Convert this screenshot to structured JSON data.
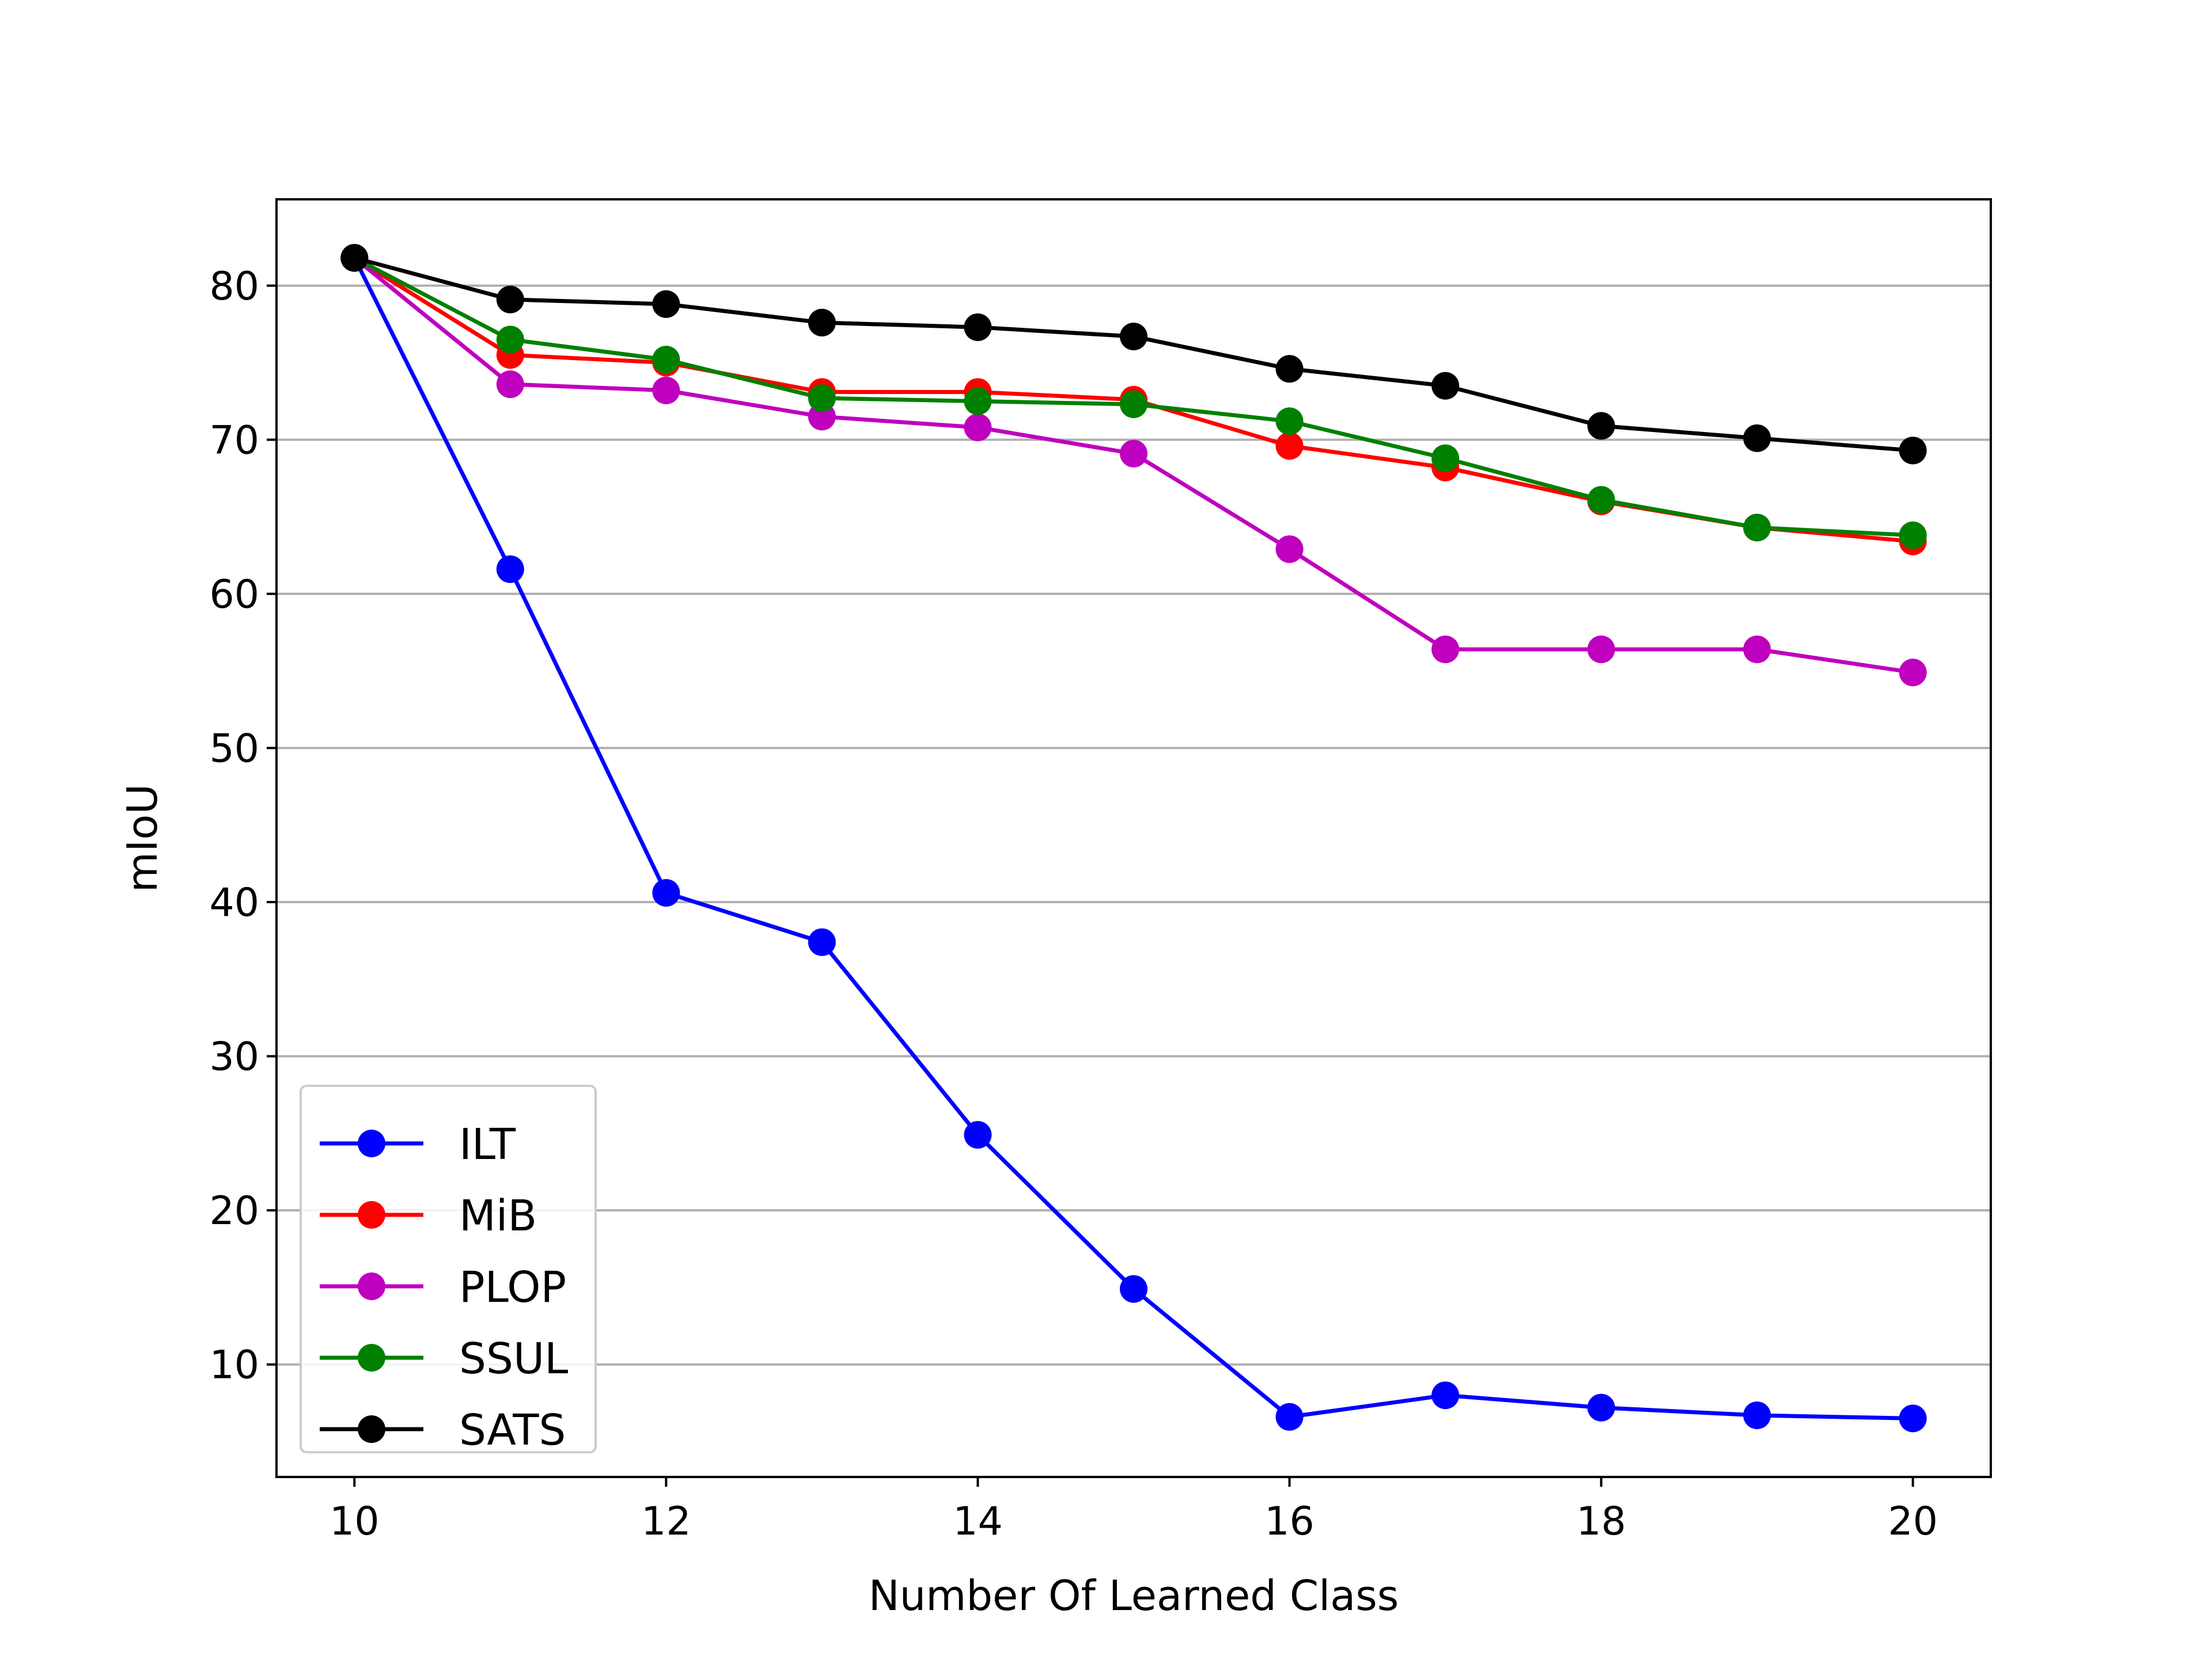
{
  "chart_data": {
    "type": "line",
    "title": "",
    "xlabel": "Number Of Learned Class",
    "ylabel": "mIoU",
    "xlim": [
      9.5,
      20.5
    ],
    "ylim": [
      2.7,
      85.6
    ],
    "xticks": [
      10,
      12,
      14,
      16,
      18,
      20
    ],
    "yticks": [
      10,
      20,
      30,
      40,
      50,
      60,
      70,
      80
    ],
    "grid": "horizontal",
    "legend_position": "lower-left",
    "x": [
      10,
      11,
      12,
      13,
      14,
      15,
      16,
      17,
      18,
      19,
      20
    ],
    "series": [
      {
        "name": "ILT",
        "color": "#0000ff",
        "marker": "circle",
        "values": [
          81.8,
          61.6,
          40.6,
          37.4,
          24.9,
          14.9,
          6.6,
          8.0,
          7.2,
          6.7,
          6.5
        ]
      },
      {
        "name": "MiB",
        "color": "#ff0000",
        "marker": "circle",
        "values": [
          81.8,
          75.5,
          75.0,
          73.1,
          73.1,
          72.6,
          69.6,
          68.2,
          66.0,
          64.3,
          63.4
        ]
      },
      {
        "name": "PLOP",
        "color": "#bf00bf",
        "marker": "circle",
        "values": [
          81.8,
          73.6,
          73.2,
          71.5,
          70.8,
          69.1,
          62.9,
          56.4,
          56.4,
          56.4,
          54.9
        ]
      },
      {
        "name": "SSUL",
        "color": "#008000",
        "marker": "circle",
        "values": [
          81.8,
          76.5,
          75.2,
          72.7,
          72.5,
          72.3,
          71.2,
          68.8,
          66.1,
          64.3,
          63.8
        ]
      },
      {
        "name": "SATS",
        "color": "#000000",
        "marker": "circle",
        "values": [
          81.8,
          79.1,
          78.8,
          77.6,
          77.3,
          76.7,
          74.6,
          73.5,
          70.9,
          70.1,
          69.3
        ]
      }
    ]
  }
}
